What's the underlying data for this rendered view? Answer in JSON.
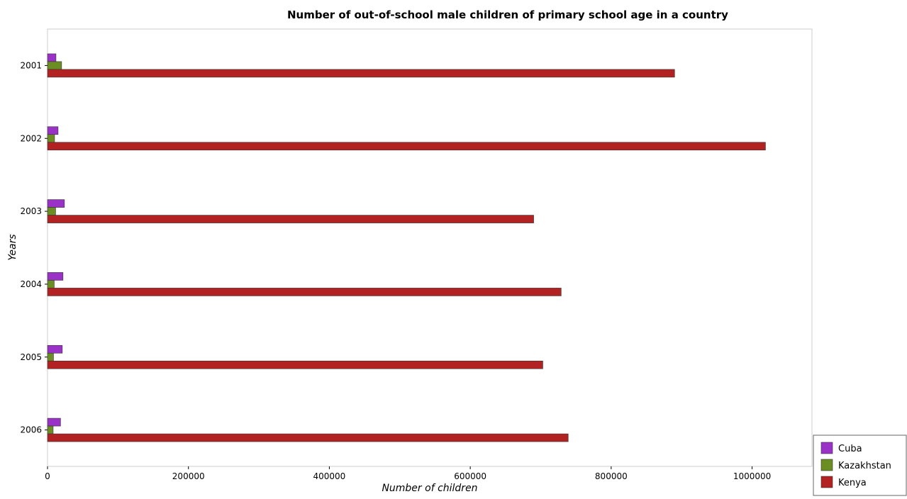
{
  "chart_data": {
    "type": "bar",
    "orientation": "horizontal",
    "title": "Number of out-of-school male children of primary school age in a country",
    "xlabel": "Number of children",
    "ylabel": "Years",
    "categories": [
      "2001",
      "2002",
      "2003",
      "2004",
      "2005",
      "2006"
    ],
    "series": [
      {
        "name": "Cuba",
        "color": "#9b32c8",
        "values": [
          12000,
          15000,
          24000,
          22000,
          21000,
          18500
        ]
      },
      {
        "name": "Kazakhstan",
        "color": "#6b8e23",
        "values": [
          20000,
          10000,
          11500,
          9500,
          8500,
          8000
        ]
      },
      {
        "name": "Kenya",
        "color": "#b22222",
        "values": [
          890000,
          1019000,
          690000,
          729000,
          703000,
          739000
        ]
      }
    ],
    "xlim": [
      0,
      1085000
    ],
    "xticks": [
      0,
      200000,
      400000,
      600000,
      800000,
      1000000
    ],
    "xtick_labels": [
      "0",
      "200000",
      "400000",
      "600000",
      "800000",
      "1000000"
    ],
    "grid": false,
    "legend_position": "bottom-right"
  }
}
